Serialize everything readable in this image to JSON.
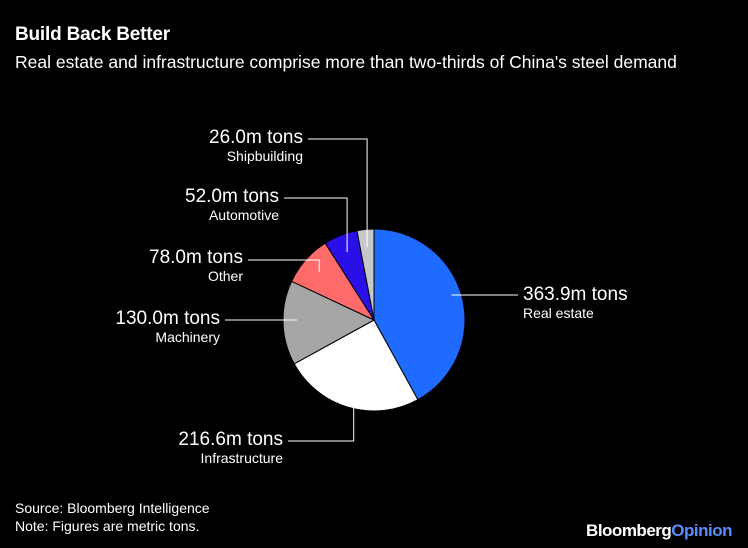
{
  "title": "Build Back Better",
  "subtitle": "Real estate and infrastructure comprise more than two-thirds of China's steel demand",
  "footer": {
    "source": "Source: Bloomberg Intelligence",
    "note": "Note: Figures are metric tons.",
    "brand_main": "Bloomberg",
    "brand_accent": "Opinion"
  },
  "chart_data": {
    "type": "pie",
    "unit": "m tons",
    "slices": [
      {
        "name": "Real estate",
        "value": 363.9,
        "value_label": "363.9m tons",
        "color": "#1f6bff"
      },
      {
        "name": "Infrastructure",
        "value": 216.6,
        "value_label": "216.6m tons",
        "color": "#ffffff"
      },
      {
        "name": "Machinery",
        "value": 130.0,
        "value_label": "130.0m tons",
        "color": "#a6a6a6"
      },
      {
        "name": "Other",
        "value": 78.0,
        "value_label": "78.0m tons",
        "color": "#ff6b6b"
      },
      {
        "name": "Automotive",
        "value": 52.0,
        "value_label": "52.0m tons",
        "color": "#2a10e6"
      },
      {
        "name": "Shipbuilding",
        "value": 26.0,
        "value_label": "26.0m tons",
        "color": "#c8c8c8"
      }
    ]
  }
}
